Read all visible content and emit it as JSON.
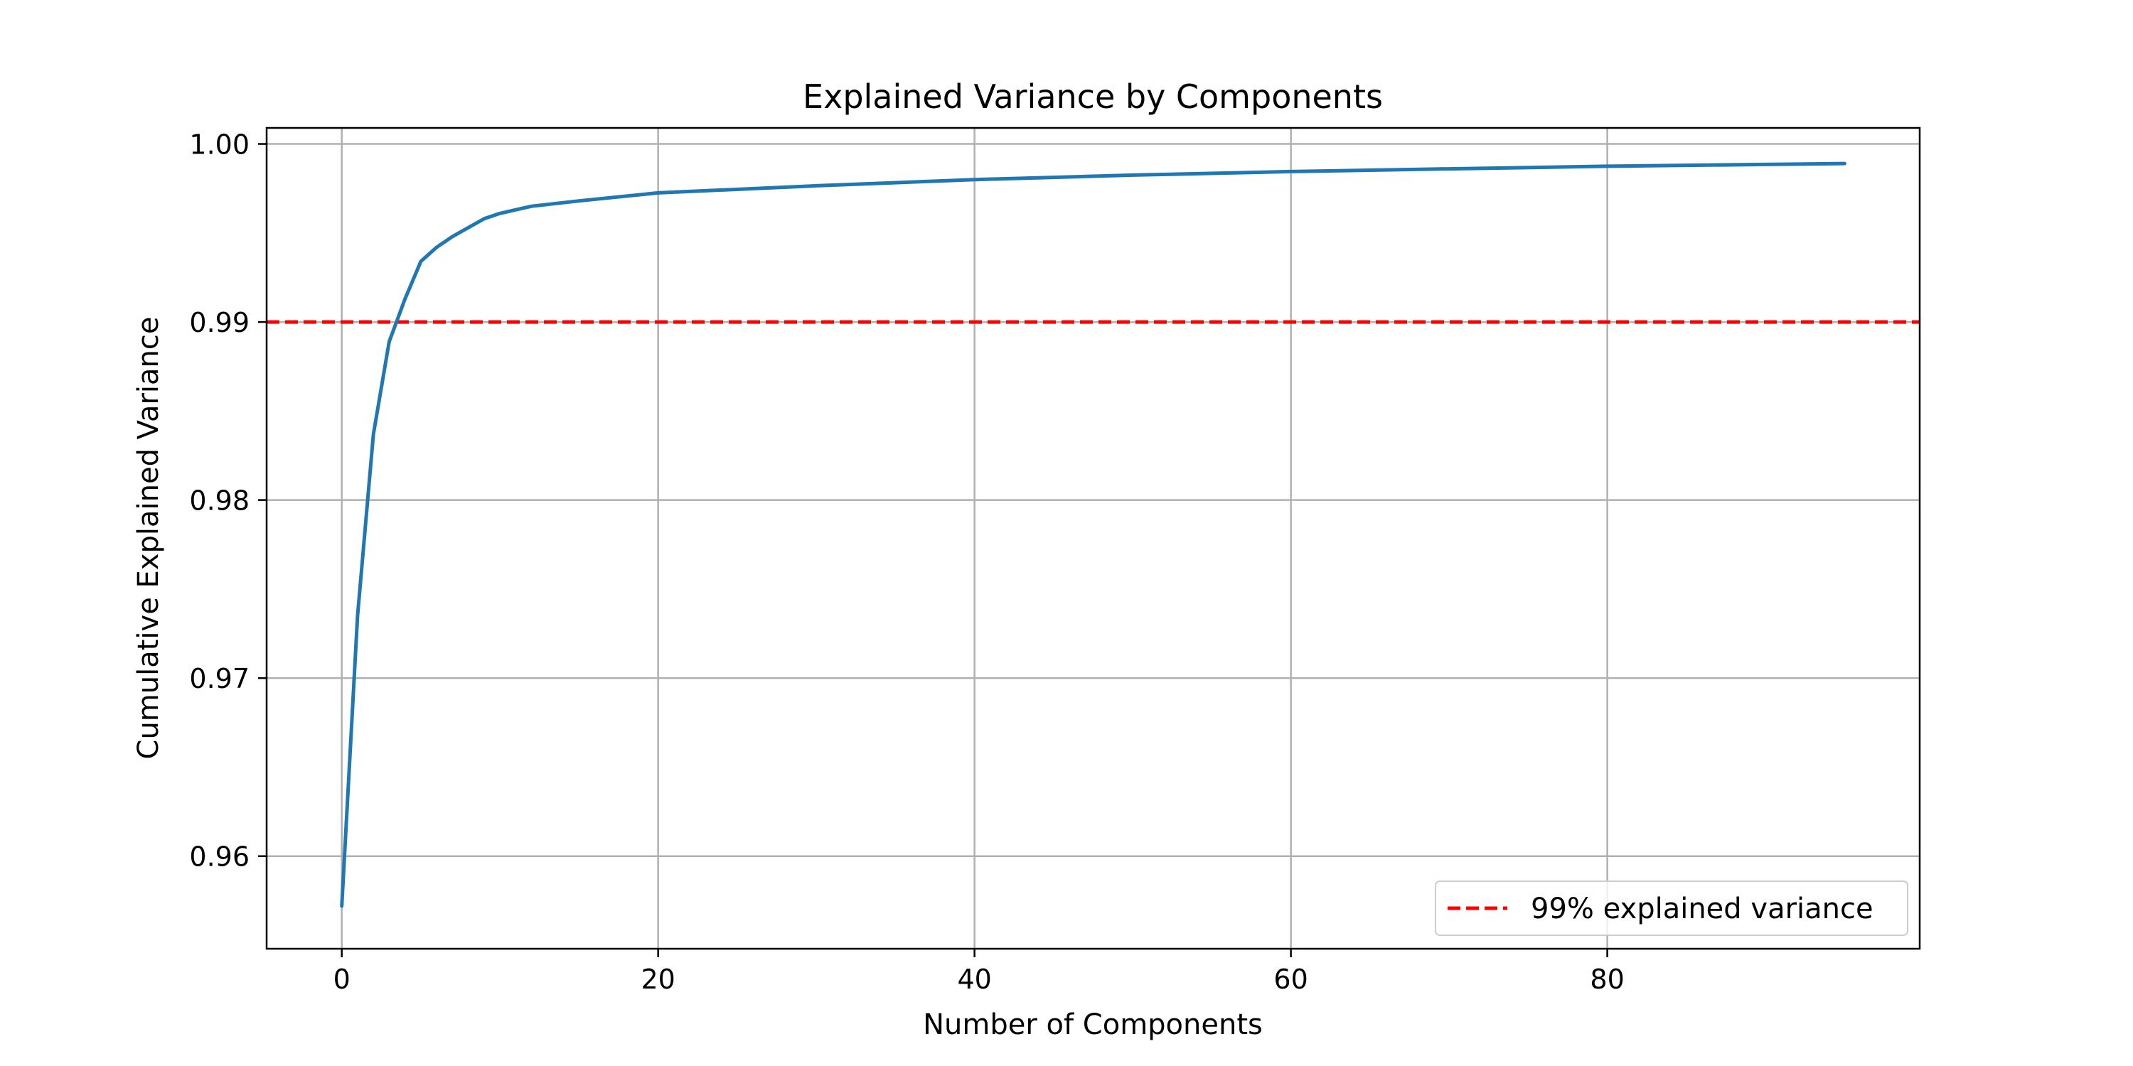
{
  "chart_data": {
    "type": "line",
    "title": "Explained Variance by Components",
    "xlabel": "Number of Components",
    "ylabel": "Cumulative Explained Variance",
    "xlim": [
      -4.75,
      99.75
    ],
    "ylim": [
      0.9548,
      1.0009
    ],
    "xticks": [
      0,
      20,
      40,
      60,
      80
    ],
    "xtick_labels": [
      "0",
      "20",
      "40",
      "60",
      "80"
    ],
    "yticks": [
      0.96,
      0.97,
      0.98,
      0.99,
      1.0
    ],
    "ytick_labels": [
      "0.96",
      "0.97",
      "0.98",
      "0.99",
      "1.00"
    ],
    "grid": true,
    "legend_position": "lower-right",
    "series": [
      {
        "color": "#1f77b4",
        "x": [
          0,
          1,
          2,
          3,
          4,
          5,
          6,
          7,
          8,
          9,
          10,
          11,
          12,
          13,
          15,
          20,
          30,
          40,
          50,
          60,
          70,
          80,
          90,
          95
        ],
        "y": [
          0.9572,
          0.9735,
          0.9837,
          0.9889,
          0.9913,
          0.9934,
          0.9942,
          0.9948,
          0.9953,
          0.9958,
          0.9961,
          0.9963,
          0.9965,
          0.9966,
          0.9968,
          0.99725,
          0.99765,
          0.998,
          0.99825,
          0.99845,
          0.9986,
          0.99875,
          0.99885,
          0.9989
        ]
      }
    ],
    "reference_lines": [
      {
        "orientation": "horizontal",
        "y": 0.99,
        "color": "#ff0000",
        "style": "dashed",
        "label": "99% explained variance"
      }
    ]
  }
}
